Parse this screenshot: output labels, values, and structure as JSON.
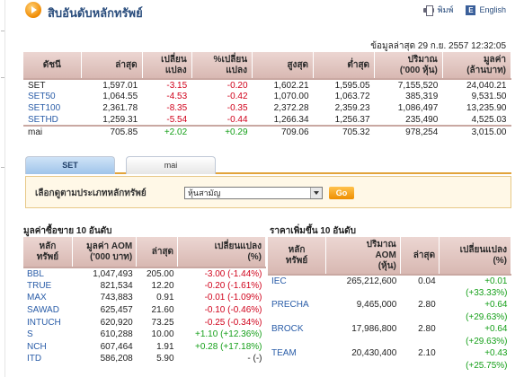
{
  "header": {
    "title": "สิบอันดับหลักทรัพย์",
    "print_label": "พิมพ์",
    "english_label": "English"
  },
  "updated": "ข้อมูลล่าสุด 29 ก.ย. 2557 12:32:05",
  "index_table": {
    "headers": [
      "ดัชนี",
      "ล่าสุด",
      "เปลี่ยน\nแปลง",
      "%เปลี่ยน\nแปลง",
      "สูงสุด",
      "ต่ำสุด",
      "ปริมาณ\n('000 หุ้น)",
      "มูลค่า\n(ล้านบาท)"
    ],
    "rows": [
      {
        "name": "SET",
        "last": "1,597.01",
        "chg": "-3.15",
        "pct": "-0.20",
        "high": "1,602.21",
        "low": "1,595.05",
        "vol": "7,155,520",
        "val": "24,040.21",
        "dir": "neg"
      },
      {
        "name": "SET50",
        "last": "1,064.55",
        "chg": "-4.53",
        "pct": "-0.42",
        "high": "1,070.00",
        "low": "1,063.72",
        "vol": "385,319",
        "val": "9,531.50",
        "dir": "neg"
      },
      {
        "name": "SET100",
        "last": "2,361.78",
        "chg": "-8.35",
        "pct": "-0.35",
        "high": "2,372.28",
        "low": "2,359.23",
        "vol": "1,086,497",
        "val": "13,235.90",
        "dir": "neg"
      },
      {
        "name": "SETHD",
        "last": "1,259.31",
        "chg": "-5.54",
        "pct": "-0.44",
        "high": "1,266.34",
        "low": "1,256.37",
        "vol": "235,490",
        "val": "4,525.03",
        "dir": "neg"
      },
      {
        "name": "mai",
        "last": "705.85",
        "chg": "+2.02",
        "pct": "+0.29",
        "high": "709.06",
        "low": "705.32",
        "vol": "978,254",
        "val": "3,015.00",
        "dir": "pos"
      }
    ]
  },
  "tabs": [
    {
      "label": "SET",
      "active": true
    },
    {
      "label": "mai",
      "active": false
    }
  ],
  "selector": {
    "label": "เลือกดูตามประเภทหลักทรัพย์",
    "selected": "หุ้นสามัญ",
    "go_label": "Go"
  },
  "aom_section": {
    "title": "มูลค่าซื้อขาย 10 อันดับ",
    "headers": [
      "หลัก\nทรัพย์",
      "มูลค่า AOM\n('000 บาท)",
      "ล่าสุด",
      "เปลี่ยนแปลง\n(%)"
    ],
    "rows": [
      {
        "sym": "BBL",
        "aom": "1,047,493",
        "last": "205.00",
        "chg": "-3.00 (-1.44%)",
        "dir": "neg"
      },
      {
        "sym": "TRUE",
        "aom": "821,534",
        "last": "12.20",
        "chg": "-0.20 (-1.61%)",
        "dir": "neg"
      },
      {
        "sym": "MAX",
        "aom": "743,883",
        "last": "0.91",
        "chg": "-0.01 (-1.09%)",
        "dir": "neg"
      },
      {
        "sym": "SAWAD",
        "aom": "625,457",
        "last": "21.60",
        "chg": "-0.10 (-0.46%)",
        "dir": "neg"
      },
      {
        "sym": "INTUCH",
        "aom": "620,920",
        "last": "73.25",
        "chg": "-0.25 (-0.34%)",
        "dir": "neg"
      },
      {
        "sym": "S",
        "aom": "610,288",
        "last": "10.00",
        "chg": "+1.10 (+12.36%)",
        "dir": "pos"
      },
      {
        "sym": "NCH",
        "aom": "607,464",
        "last": "1.91",
        "chg": "+0.28 (+17.18%)",
        "dir": "pos"
      },
      {
        "sym": "ITD",
        "aom": "586,208",
        "last": "5.90",
        "chg": "- (-)",
        "dir": "none"
      }
    ]
  },
  "gain_section": {
    "title": "ราคาเพิ่มขึ้น 10 อันดับ",
    "headers": [
      "หลัก\nทรัพย์",
      "ปริมาณ\nAOM\n(หุ้น)",
      "ล่าสุด",
      "เปลี่ยนแปลง\n(%)"
    ],
    "rows": [
      {
        "sym": "IEC",
        "vol": "265,212,600",
        "last": "0.04",
        "chg": "+0.01",
        "pct": "(+33.33%)"
      },
      {
        "sym": "PRECHA",
        "vol": "9,465,000",
        "last": "2.80",
        "chg": "+0.64",
        "pct": "(+29.63%)"
      },
      {
        "sym": "BROCK",
        "vol": "17,986,800",
        "last": "2.80",
        "chg": "+0.64",
        "pct": "(+29.63%)"
      },
      {
        "sym": "TEAM",
        "vol": "20,430,400",
        "last": "2.10",
        "chg": "+0.43",
        "pct": "(+25.75%)"
      }
    ]
  },
  "colors": {
    "negative": "#d0021b",
    "positive": "#16a01a",
    "link": "#2a5da8",
    "header_bg": "#dcbeb8",
    "accent": "#e2a33a"
  }
}
